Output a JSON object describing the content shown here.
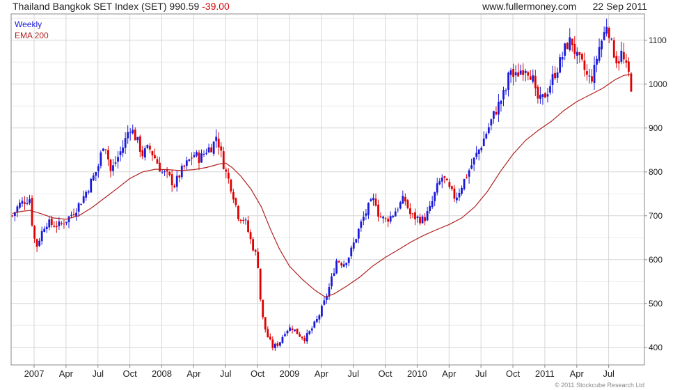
{
  "header": {
    "title": "Thailand Bangkok SET Index (SET)",
    "last": "990.59",
    "change": "-39.00",
    "site": "www.fullermoney.com",
    "date": "22 Sep 2011"
  },
  "legend": {
    "weekly": "Weekly",
    "ema": "EMA 200"
  },
  "copyright": "© 2011 Stockcube Research Ltd",
  "colors": {
    "up": "#1a1adb",
    "down": "#e00000",
    "ema": "#b02020",
    "grid": "#d6d6d6",
    "frame": "#888888"
  },
  "chart_data": {
    "type": "candlestick",
    "ylim": [
      360,
      1160
    ],
    "y_ticks": [
      400,
      500,
      600,
      700,
      800,
      900,
      1000,
      1100
    ],
    "x_ticks": [
      {
        "label": "2007",
        "t": 2007.0
      },
      {
        "label": "Apr",
        "t": 2007.25
      },
      {
        "label": "Jul",
        "t": 2007.5
      },
      {
        "label": "Oct",
        "t": 2007.75
      },
      {
        "label": "2008",
        "t": 2008.0
      },
      {
        "label": "Apr",
        "t": 2008.25
      },
      {
        "label": "Jul",
        "t": 2008.5
      },
      {
        "label": "Oct",
        "t": 2008.75
      },
      {
        "label": "2009",
        "t": 2009.0
      },
      {
        "label": "Apr",
        "t": 2009.25
      },
      {
        "label": "Jul",
        "t": 2009.5
      },
      {
        "label": "Oct",
        "t": 2009.75
      },
      {
        "label": "2010",
        "t": 2010.0
      },
      {
        "label": "Apr",
        "t": 2010.25
      },
      {
        "label": "Jul",
        "t": 2010.5
      },
      {
        "label": "Oct",
        "t": 2010.75
      },
      {
        "label": "2011",
        "t": 2011.0
      },
      {
        "label": "Apr",
        "t": 2011.25
      },
      {
        "label": "Jul",
        "t": 2011.5
      }
    ],
    "xlim": [
      2006.82,
      2011.78
    ],
    "close_path": [
      [
        2006.83,
        700
      ],
      [
        2006.88,
        725
      ],
      [
        2006.93,
        735
      ],
      [
        2006.97,
        740
      ],
      [
        2006.99,
        660
      ],
      [
        2007.02,
        630
      ],
      [
        2007.05,
        655
      ],
      [
        2007.09,
        685
      ],
      [
        2007.14,
        680
      ],
      [
        2007.2,
        678
      ],
      [
        2007.25,
        690
      ],
      [
        2007.3,
        705
      ],
      [
        2007.35,
        725
      ],
      [
        2007.4,
        750
      ],
      [
        2007.45,
        780
      ],
      [
        2007.5,
        810
      ],
      [
        2007.55,
        875
      ],
      [
        2007.6,
        800
      ],
      [
        2007.65,
        830
      ],
      [
        2007.7,
        860
      ],
      [
        2007.75,
        905
      ],
      [
        2007.8,
        875
      ],
      [
        2007.85,
        840
      ],
      [
        2007.9,
        855
      ],
      [
        2007.95,
        830
      ],
      [
        2008.0,
        800
      ],
      [
        2008.05,
        790
      ],
      [
        2008.1,
        770
      ],
      [
        2008.15,
        800
      ],
      [
        2008.2,
        820
      ],
      [
        2008.25,
        840
      ],
      [
        2008.3,
        830
      ],
      [
        2008.35,
        850
      ],
      [
        2008.4,
        860
      ],
      [
        2008.43,
        885
      ],
      [
        2008.46,
        845
      ],
      [
        2008.5,
        800
      ],
      [
        2008.55,
        760
      ],
      [
        2008.6,
        700
      ],
      [
        2008.65,
        690
      ],
      [
        2008.7,
        640
      ],
      [
        2008.75,
        600
      ],
      [
        2008.78,
        480
      ],
      [
        2008.82,
        430
      ],
      [
        2008.87,
        400
      ],
      [
        2008.92,
        410
      ],
      [
        2008.97,
        440
      ],
      [
        2009.02,
        445
      ],
      [
        2009.07,
        430
      ],
      [
        2009.12,
        420
      ],
      [
        2009.17,
        440
      ],
      [
        2009.22,
        465
      ],
      [
        2009.27,
        500
      ],
      [
        2009.32,
        545
      ],
      [
        2009.37,
        600
      ],
      [
        2009.42,
        590
      ],
      [
        2009.47,
        610
      ],
      [
        2009.52,
        650
      ],
      [
        2009.57,
        690
      ],
      [
        2009.62,
        720
      ],
      [
        2009.67,
        740
      ],
      [
        2009.7,
        700
      ],
      [
        2009.75,
        690
      ],
      [
        2009.8,
        700
      ],
      [
        2009.85,
        720
      ],
      [
        2009.9,
        740
      ],
      [
        2009.95,
        700
      ],
      [
        2010.0,
        695
      ],
      [
        2010.05,
        690
      ],
      [
        2010.1,
        715
      ],
      [
        2010.15,
        760
      ],
      [
        2010.2,
        790
      ],
      [
        2010.25,
        760
      ],
      [
        2010.3,
        740
      ],
      [
        2010.35,
        770
      ],
      [
        2010.4,
        800
      ],
      [
        2010.45,
        830
      ],
      [
        2010.5,
        860
      ],
      [
        2010.55,
        895
      ],
      [
        2010.6,
        930
      ],
      [
        2010.65,
        960
      ],
      [
        2010.7,
        990
      ],
      [
        2010.73,
        1040
      ],
      [
        2010.76,
        1010
      ],
      [
        2010.8,
        1030
      ],
      [
        2010.85,
        1040
      ],
      [
        2010.9,
        1020
      ],
      [
        2010.93,
        970
      ],
      [
        2010.97,
        960
      ],
      [
        2011.02,
        985
      ],
      [
        2011.07,
        1020
      ],
      [
        2011.12,
        1050
      ],
      [
        2011.17,
        1090
      ],
      [
        2011.21,
        1100
      ],
      [
        2011.25,
        1060
      ],
      [
        2011.3,
        1040
      ],
      [
        2011.34,
        1010
      ],
      [
        2011.38,
        1020
      ],
      [
        2011.42,
        1080
      ],
      [
        2011.46,
        1110
      ],
      [
        2011.49,
        1145
      ],
      [
        2011.52,
        1090
      ],
      [
        2011.57,
        1050
      ],
      [
        2011.6,
        1070
      ],
      [
        2011.63,
        1040
      ],
      [
        2011.66,
        1020
      ],
      [
        2011.68,
        990
      ]
    ],
    "ema_path": [
      [
        2006.83,
        705
      ],
      [
        2006.9,
        710
      ],
      [
        2006.97,
        712
      ],
      [
        2007.05,
        705
      ],
      [
        2007.15,
        695
      ],
      [
        2007.25,
        692
      ],
      [
        2007.35,
        700
      ],
      [
        2007.45,
        718
      ],
      [
        2007.55,
        740
      ],
      [
        2007.65,
        762
      ],
      [
        2007.75,
        785
      ],
      [
        2007.85,
        800
      ],
      [
        2007.95,
        806
      ],
      [
        2008.05,
        805
      ],
      [
        2008.15,
        803
      ],
      [
        2008.25,
        805
      ],
      [
        2008.35,
        810
      ],
      [
        2008.45,
        818
      ],
      [
        2008.5,
        820
      ],
      [
        2008.55,
        810
      ],
      [
        2008.62,
        790
      ],
      [
        2008.7,
        760
      ],
      [
        2008.78,
        720
      ],
      [
        2008.85,
        670
      ],
      [
        2008.92,
        625
      ],
      [
        2009.0,
        585
      ],
      [
        2009.1,
        555
      ],
      [
        2009.2,
        530
      ],
      [
        2009.28,
        515
      ],
      [
        2009.35,
        522
      ],
      [
        2009.45,
        540
      ],
      [
        2009.55,
        560
      ],
      [
        2009.65,
        585
      ],
      [
        2009.75,
        605
      ],
      [
        2009.85,
        622
      ],
      [
        2009.95,
        640
      ],
      [
        2010.05,
        655
      ],
      [
        2010.15,
        668
      ],
      [
        2010.25,
        680
      ],
      [
        2010.35,
        695
      ],
      [
        2010.45,
        720
      ],
      [
        2010.55,
        755
      ],
      [
        2010.65,
        800
      ],
      [
        2010.75,
        840
      ],
      [
        2010.85,
        872
      ],
      [
        2010.95,
        895
      ],
      [
        2011.05,
        915
      ],
      [
        2011.15,
        940
      ],
      [
        2011.25,
        960
      ],
      [
        2011.35,
        975
      ],
      [
        2011.45,
        990
      ],
      [
        2011.55,
        1010
      ],
      [
        2011.62,
        1020
      ],
      [
        2011.68,
        1022
      ]
    ]
  }
}
